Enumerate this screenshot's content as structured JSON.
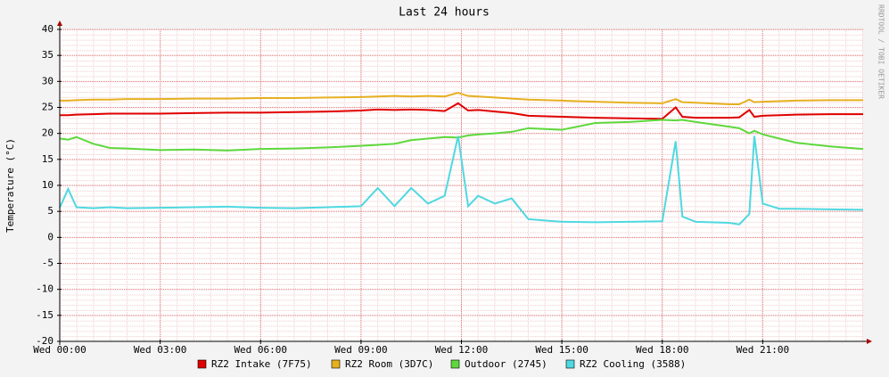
{
  "chart_data": {
    "type": "line",
    "title": "Last 24 hours",
    "y_label": "Temperature (°C)",
    "watermark": "RRDTOOL / TOBI OETIKER",
    "x": [
      0,
      0.25,
      0.5,
      1,
      1.5,
      2,
      3,
      4,
      5,
      6,
      7,
      8,
      9,
      9.5,
      10,
      10.5,
      11,
      11.5,
      11.9,
      12.2,
      12.5,
      13,
      13.5,
      14,
      15,
      16,
      17,
      18,
      18.4,
      18.6,
      19,
      20,
      20.3,
      20.6,
      20.75,
      21,
      21.5,
      22,
      23,
      24
    ],
    "xlim": [
      0,
      24
    ],
    "xticks": [
      {
        "value": 0,
        "label": "Wed 00:00"
      },
      {
        "value": 3,
        "label": "Wed 03:00"
      },
      {
        "value": 6,
        "label": "Wed 06:00"
      },
      {
        "value": 9,
        "label": "Wed 09:00"
      },
      {
        "value": 12,
        "label": "Wed 12:00"
      },
      {
        "value": 15,
        "label": "Wed 15:00"
      },
      {
        "value": 18,
        "label": "Wed 18:00"
      },
      {
        "value": 21,
        "label": "Wed 21:00"
      }
    ],
    "ylim": [
      -20,
      40
    ],
    "yticks": [
      -20,
      -15,
      -10,
      -5,
      0,
      5,
      10,
      15,
      20,
      25,
      30,
      35,
      40
    ],
    "grid": true,
    "legend": "bottom",
    "series": [
      {
        "name": "RZ2 Intake (7F75)",
        "color": "#e00000",
        "values": [
          23.5,
          23.5,
          23.6,
          23.7,
          23.8,
          23.8,
          23.8,
          23.9,
          24,
          24,
          24.1,
          24.2,
          24.4,
          24.6,
          24.5,
          24.6,
          24.5,
          24.3,
          25.8,
          24.4,
          24.5,
          24.2,
          23.9,
          23.4,
          23.2,
          23,
          22.9,
          22.8,
          25,
          23.2,
          23,
          23,
          23.1,
          24.5,
          23.2,
          23.4,
          23.5,
          23.6,
          23.7,
          23.7
        ]
      },
      {
        "name": "RZ2 Room (3D7C)",
        "color": "#e6b020",
        "values": [
          26.3,
          26.3,
          26.4,
          26.5,
          26.5,
          26.6,
          26.6,
          26.7,
          26.7,
          26.8,
          26.8,
          26.9,
          27,
          27.1,
          27.2,
          27.1,
          27.2,
          27.1,
          27.8,
          27.2,
          27.1,
          26.9,
          26.7,
          26.5,
          26.3,
          26.1,
          25.9,
          25.8,
          26.6,
          26,
          25.9,
          25.6,
          25.6,
          26.5,
          26,
          26.1,
          26.2,
          26.3,
          26.4,
          26.4
        ]
      },
      {
        "name": "Outdoor (2745)",
        "color": "#5ed83c",
        "values": [
          19,
          18.8,
          19.3,
          18,
          17.2,
          17.1,
          16.8,
          16.9,
          16.7,
          17,
          17.1,
          17.3,
          17.6,
          17.8,
          18,
          18.7,
          19,
          19.3,
          19.2,
          19.6,
          19.8,
          20,
          20.3,
          21,
          20.7,
          22,
          22.2,
          22.6,
          22.5,
          22.6,
          22.2,
          21.3,
          21,
          20,
          20.5,
          19.8,
          19,
          18.2,
          17.5,
          17
        ]
      },
      {
        "name": "RZ2 Cooling (3588)",
        "color": "#4fd8e0",
        "values": [
          5.7,
          9.3,
          5.8,
          5.6,
          5.8,
          5.6,
          5.7,
          5.8,
          5.9,
          5.7,
          5.6,
          5.8,
          6,
          9.5,
          6,
          9.5,
          6.5,
          8,
          19.5,
          6,
          8,
          6.5,
          7.5,
          3.5,
          3,
          2.9,
          3,
          3.1,
          18.5,
          4,
          3,
          2.8,
          2.5,
          4.5,
          19.5,
          6.5,
          5.5,
          5.5,
          5.4,
          5.3
        ]
      }
    ]
  }
}
